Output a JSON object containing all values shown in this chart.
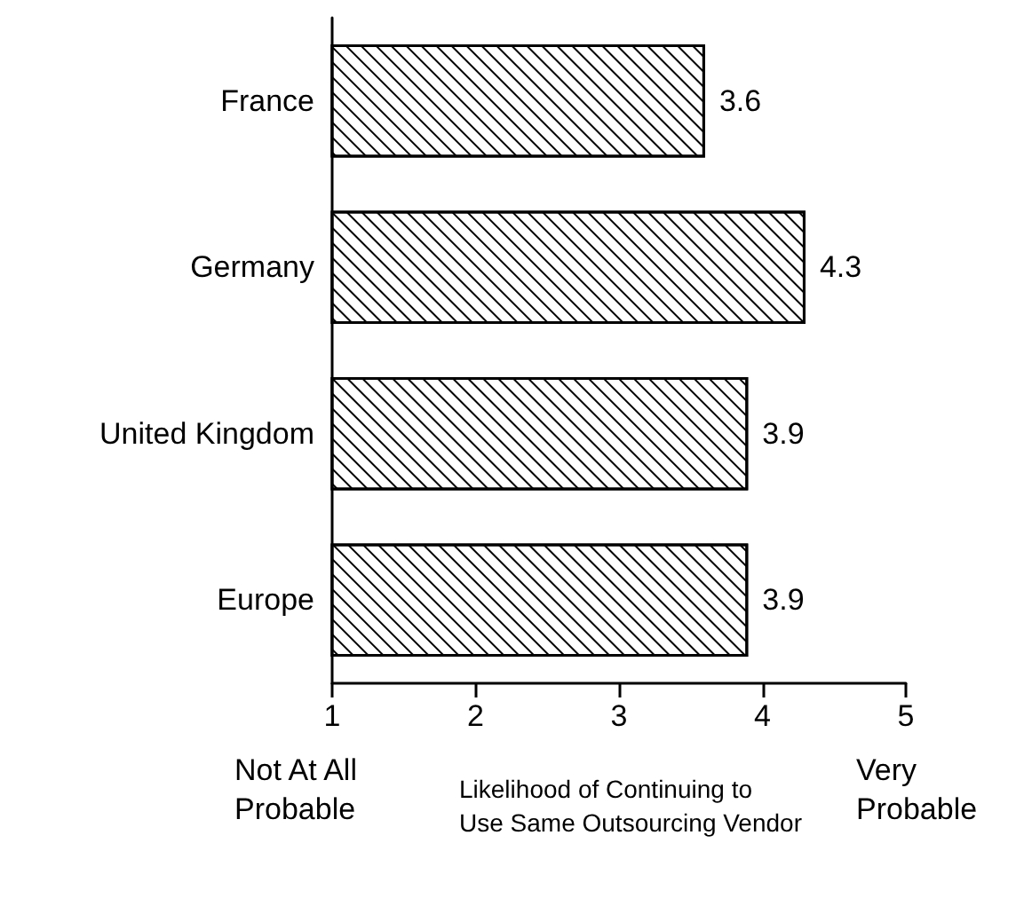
{
  "chart_data": {
    "type": "bar",
    "orientation": "horizontal",
    "xlabel": "Likelihood of Continuing to Use Same Outsourcing Vendor",
    "categories": [
      "France",
      "Germany",
      "United Kingdom",
      "Europe"
    ],
    "values": [
      3.6,
      4.3,
      3.9,
      3.9
    ],
    "color": "#ffffff",
    "xlim": [
      1,
      5
    ],
    "xticks": [
      1,
      2,
      3,
      4,
      5
    ],
    "grid": false,
    "data_labels": true,
    "annotations": [
      "Not At All\nProbable",
      "Very\nProbable"
    ]
  }
}
